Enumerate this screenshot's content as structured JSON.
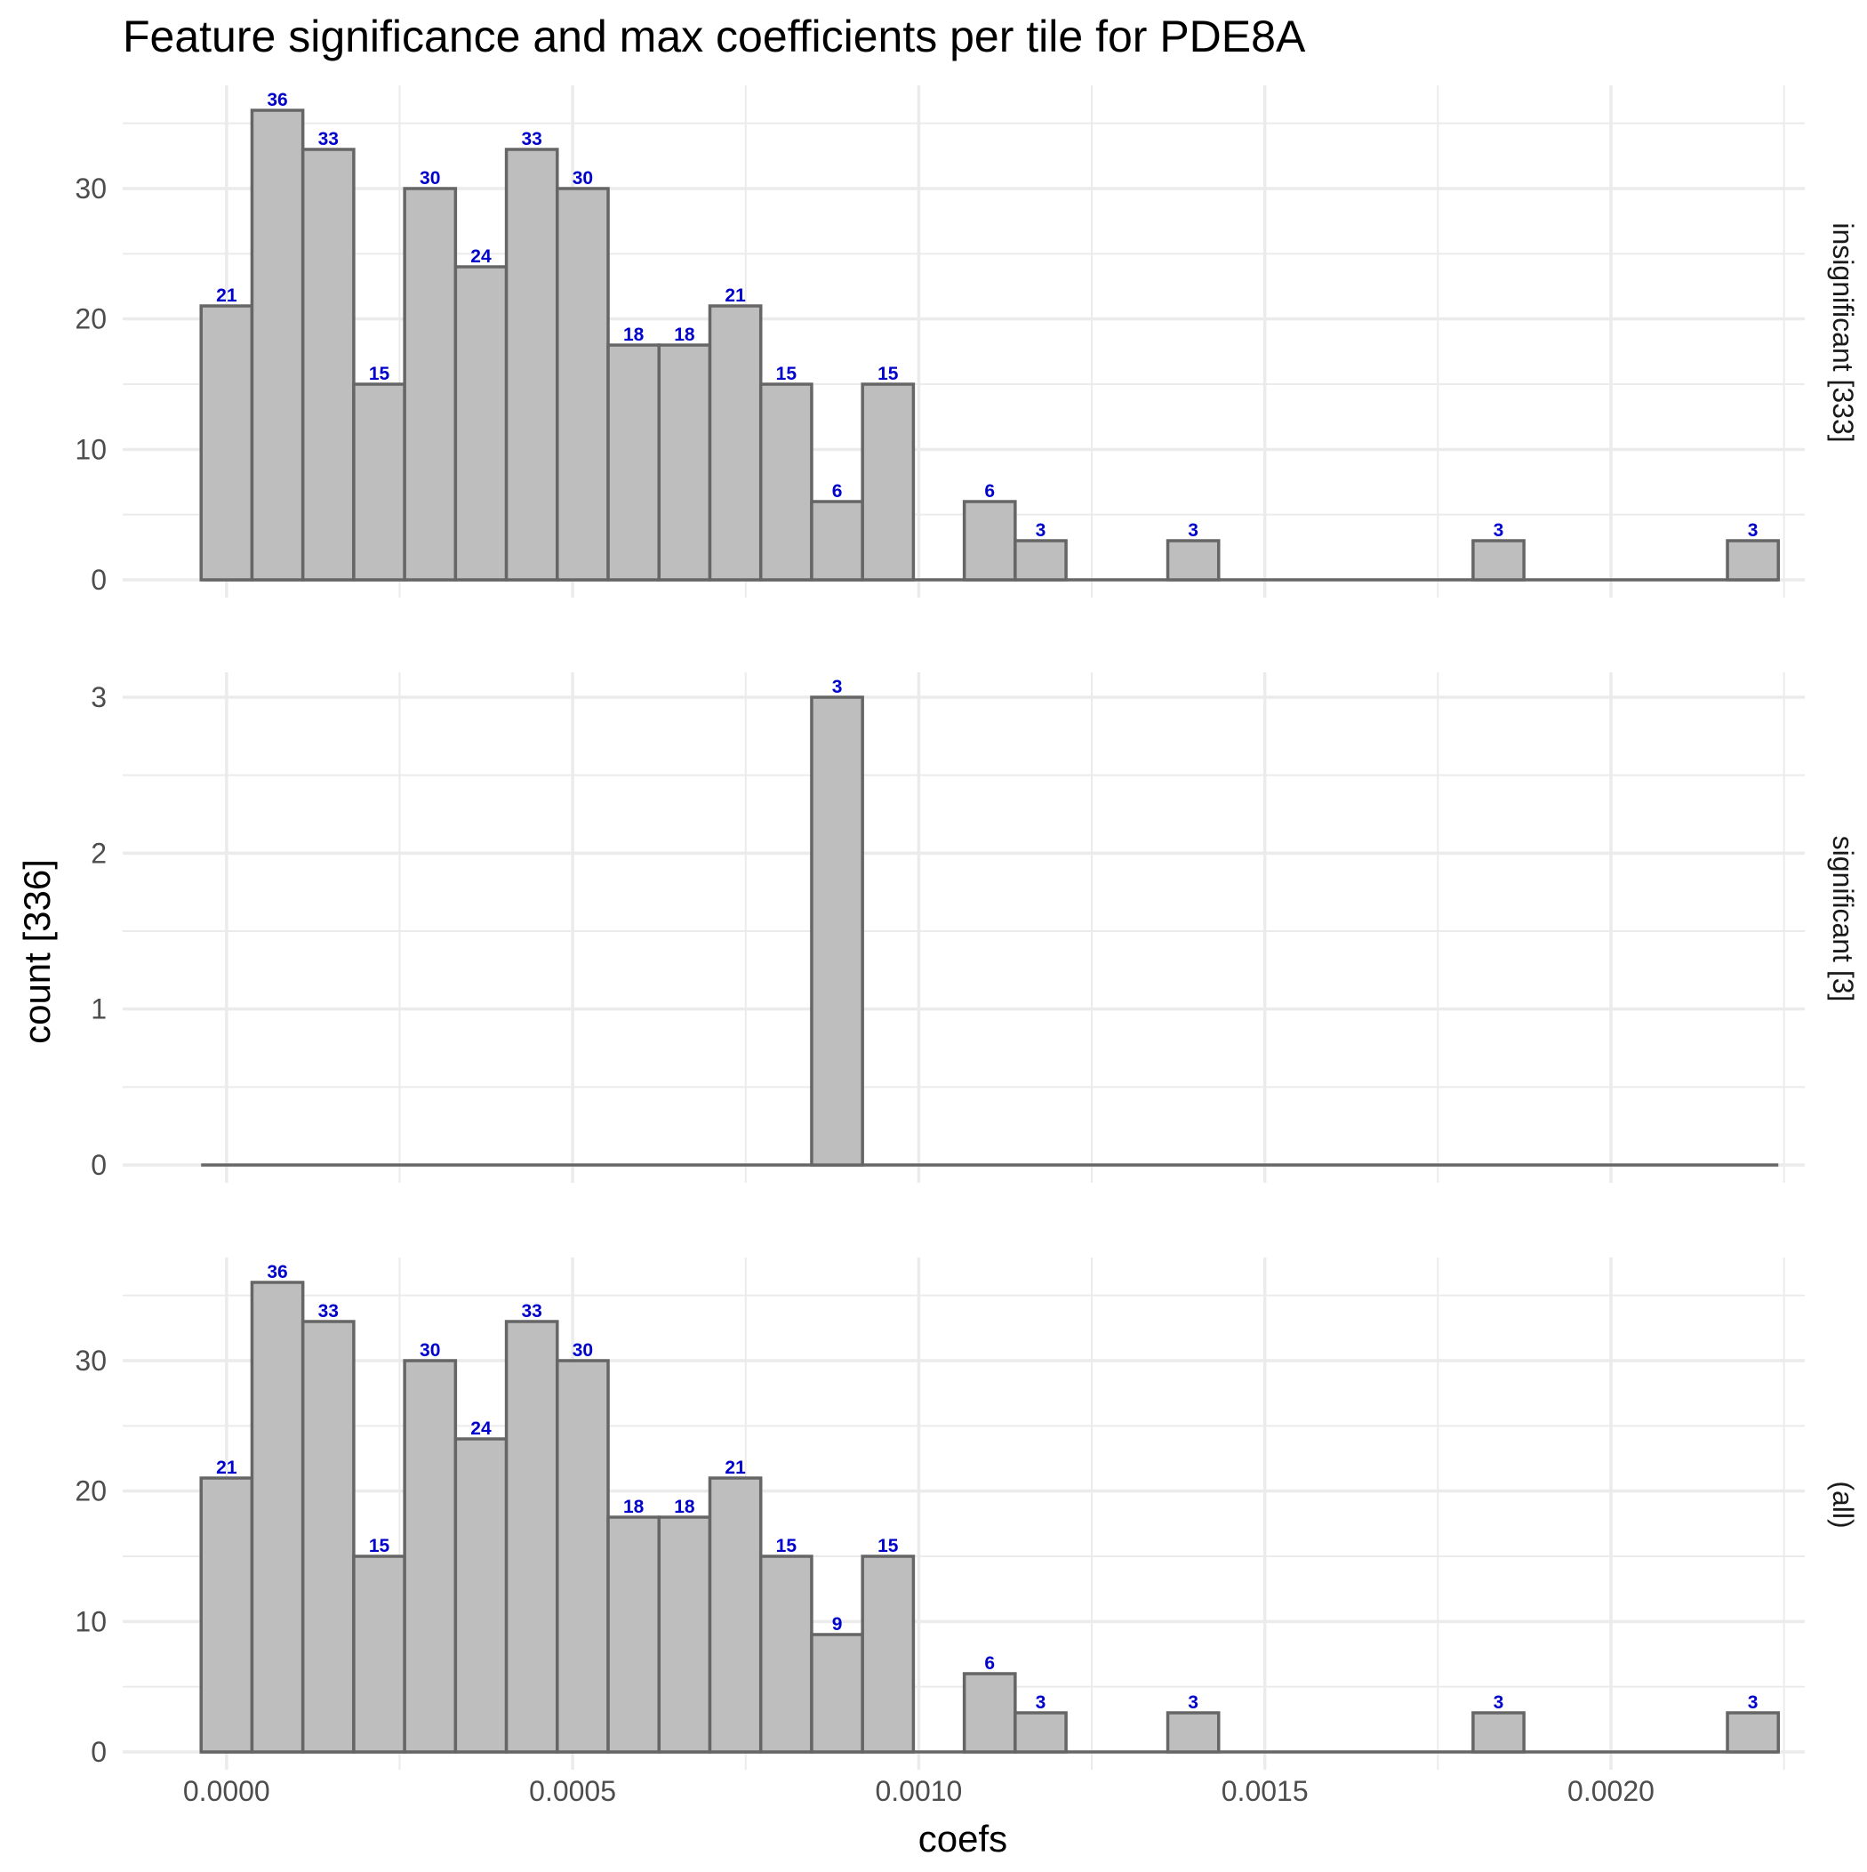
{
  "chart_data": {
    "type": "bar",
    "title": "Feature significance and max coefficients per tile for PDE8A",
    "xlabel": "coefs",
    "ylabel": "count [336]",
    "x_ticks": [
      "0.0000",
      "0.0005",
      "0.0010",
      "0.0015",
      "0.0020"
    ],
    "x_tick_values": [
      0,
      0.0005,
      0.001,
      0.0015,
      0.002
    ],
    "xlim": [
      -0.00015,
      0.00228
    ],
    "bin_width": 7.35e-05,
    "bin_start": -3.67e-05,
    "grid": true,
    "colors": {
      "bar_fill": "#bebebe",
      "bar_stroke": "#666666",
      "label": "#0000cc",
      "grid": "#ebebeb"
    },
    "panels": [
      {
        "strip_label": "insignificant [333]",
        "y_ticks": [
          "0",
          "10",
          "20",
          "30"
        ],
        "y_tick_values": [
          0,
          10,
          20,
          30
        ],
        "ylim": [
          0,
          36
        ],
        "values": [
          21,
          36,
          33,
          15,
          30,
          24,
          33,
          30,
          18,
          18,
          21,
          15,
          6,
          15,
          0,
          6,
          3,
          0,
          0,
          3,
          0,
          0,
          0,
          0,
          0,
          3,
          0,
          0,
          0,
          0,
          3
        ]
      },
      {
        "strip_label": "significant [3]",
        "y_ticks": [
          "0",
          "1",
          "2",
          "3"
        ],
        "y_tick_values": [
          0,
          1,
          2,
          3
        ],
        "ylim": [
          0,
          3
        ],
        "values": [
          0,
          0,
          0,
          0,
          0,
          0,
          0,
          0,
          0,
          0,
          0,
          0,
          3,
          0,
          0,
          0,
          0,
          0,
          0,
          0,
          0,
          0,
          0,
          0,
          0,
          0,
          0,
          0,
          0,
          0,
          0
        ]
      },
      {
        "strip_label": "(all)",
        "y_ticks": [
          "0",
          "10",
          "20",
          "30"
        ],
        "y_tick_values": [
          0,
          10,
          20,
          30
        ],
        "ylim": [
          0,
          36
        ],
        "values": [
          21,
          36,
          33,
          15,
          30,
          24,
          33,
          30,
          18,
          18,
          21,
          15,
          9,
          15,
          0,
          6,
          3,
          0,
          0,
          3,
          0,
          0,
          0,
          0,
          0,
          3,
          0,
          0,
          0,
          0,
          3
        ]
      }
    ]
  }
}
